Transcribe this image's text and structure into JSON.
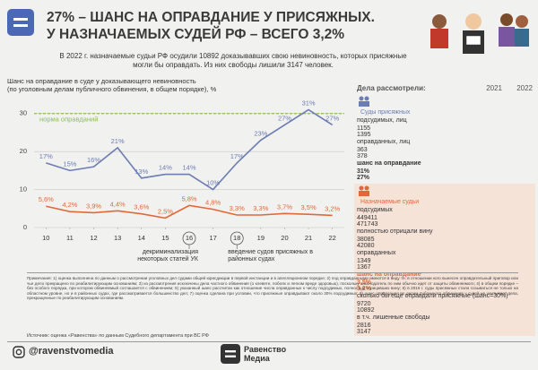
{
  "header": {
    "title_line1": "27% – ШАНС НА ОПРАВДАНИЕ У ПРИСЯЖНЫХ.",
    "title_line2": "У НАЗНАЧАЕМЫХ СУДЕЙ РФ – ВСЕГО 3,2%",
    "subtitle": "В 2022 г. назначаемые судьи РФ осудили 10892 доказывавших свою невиновность, которых присяжные могли бы оправдать. Из них свободы лишили 3147 человек."
  },
  "chart_data": {
    "type": "line",
    "title": "Шанс на оправдание в суде у доказывающего невиновность",
    "subtitle": "(по уголовным делам публичного обвинения, в общем порядке), %",
    "x": [
      10,
      11,
      12,
      13,
      14,
      15,
      16,
      17,
      18,
      19,
      20,
      21,
      22
    ],
    "xlim": [
      9.5,
      22.5
    ],
    "xticks": [
      10,
      11,
      12,
      13,
      14,
      15,
      16,
      17,
      18,
      19,
      20,
      21,
      22
    ],
    "ylim": [
      0,
      33
    ],
    "yticks": [
      0,
      10,
      20,
      30
    ],
    "grid": true,
    "series": [
      {
        "color": "#6b7db3",
        "values": [
          17,
          15,
          16,
          21,
          13,
          14,
          14,
          10,
          17,
          23,
          27,
          31,
          27
        ],
        "value_labels": [
          "17%",
          "15%",
          "16%",
          "21%",
          "13%",
          "14%",
          "14%",
          "10%",
          "17%",
          "23%",
          "27%",
          "31%",
          "27%"
        ]
      },
      {
        "color": "#e0693a",
        "values": [
          5.6,
          4.2,
          3.9,
          4.4,
          3.6,
          2.5,
          5.8,
          4.8,
          3.3,
          3.3,
          3.7,
          3.5,
          3.2
        ],
        "value_labels": [
          "5,6%",
          "4,2%",
          "3,9%",
          "4,4%",
          "3,6%",
          "2,5%",
          "5,8%",
          "4,8%",
          "3,3%",
          "3,3%",
          "3,7%",
          "3,5%",
          "3,2%"
        ]
      }
    ],
    "reference_lines": [
      {
        "value": 30,
        "label": "норма оправданий",
        "color": "#8cc04a"
      }
    ],
    "annotations": [
      {
        "x": 16,
        "text": "декриминализация некоторых статей УК"
      },
      {
        "x": 18,
        "text": "введение судов присяжных в районных судах"
      }
    ]
  },
  "table": {
    "title": "Дела рассмотрели:",
    "columns": [
      "2021",
      "2022"
    ],
    "sections": [
      {
        "title": "Суды присяжных",
        "rows": [
          {
            "label": "подсудимых, лиц",
            "values": [
              1155,
              1395
            ]
          },
          {
            "label": "оправданных, лиц",
            "values": [
              363,
              378
            ]
          },
          {
            "label": "шанс на оправдание",
            "values": [
              "31%",
              "27%"
            ]
          }
        ]
      },
      {
        "title": "Назначаемые судьи",
        "rows": [
          {
            "label": "подсудимых",
            "values": [
              449411,
              471743
            ]
          },
          {
            "label": "полностью отрицали вину",
            "values": [
              38085,
              42080
            ]
          },
          {
            "label": "оправданных",
            "values": [
              1349,
              1367
            ]
          },
          {
            "label": "шанс на оправдание",
            "values": [
              "3,5%",
              "3,2%"
            ]
          },
          {
            "label": "сколько бы ещё оправдали присяжные (шанс=30%)",
            "values": [
              9720,
              10892
            ]
          },
          {
            "label": "в т.ч. лишенные свободы",
            "values": [
              2816,
              3147
            ]
          }
        ]
      }
    ]
  },
  "notes": {
    "text": "Примечания: 1) оценка выполнена по данным о рассмотрении уголовных дел судами общей юрисдикции в первой инстанции и в апелляционном порядке; 2) под оправданными имеются в виду те, в отношении кого вынесен оправдательный приговор или чье дело прекращено по реабилитирующим основаниям; 3) из рассмотрения исключены дела частного обвинения (о клевете, побоях и легком вреде здоровью), поскольку законодатель по ним обычно идет от защиты обвиняемого; 4) в общем порядке – без особого порядка, при котором обвиняемый соглашается с обвинением; 5) указанный шанс рассчитан как отношение числа оправданных к числу подсудимых, полностью отрицавших вину; 6) в 2016 г. суды присяжных стали созываться не только на областном уровне, но и в районных судах, где рассматривается большинство дел; 7) оценка сделана при условии, что присяжные оправдывают около 30% подсудимых; 8) шанс оправдания по делам публичного обвинения у судей не учитывает дела, прекращенные по реабилитирующим основаниям.",
    "source": "Источник: оценка «Равенства» по данным Судебного департамента при ВС РФ"
  },
  "footer": {
    "handle": "@ravenstvomedia",
    "brand_line1": "Равенство",
    "brand_line2": "Медиа"
  }
}
